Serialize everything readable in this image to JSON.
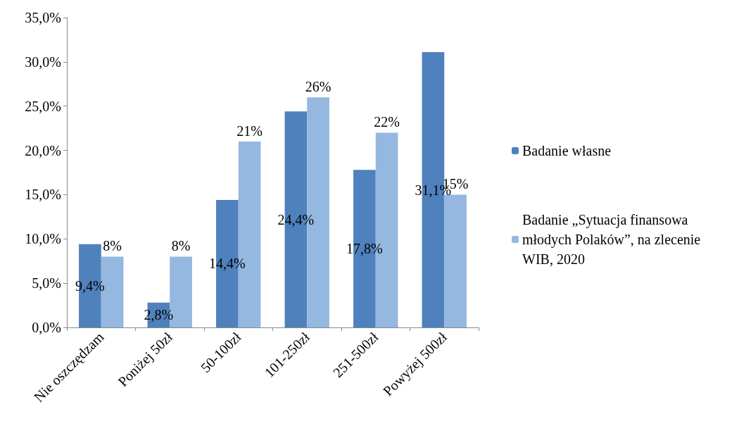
{
  "chart_data": {
    "type": "bar",
    "categories": [
      "Nie oszczędzam",
      "Poniżej 50zł",
      "50-100zł",
      "101-250zł",
      "251-500zł",
      "Powyżej 500zł"
    ],
    "series": [
      {
        "name": "Badanie własne",
        "color": "#4f81bd",
        "values": [
          9.4,
          2.8,
          14.4,
          24.4,
          17.8,
          31.1
        ],
        "value_labels": [
          "9,4%",
          "2,8%",
          "14,4%",
          "24,4%",
          "17,8%",
          "31,1%"
        ]
      },
      {
        "name": "Badanie „Sytuacja finansowa młodych Polaków”, na zlecenie WIB, 2020",
        "color": "#95b8e0",
        "values": [
          8,
          8,
          21,
          26,
          22,
          15
        ],
        "value_labels": [
          "8%",
          "8%",
          "21%",
          "26%",
          "22%",
          "15%"
        ]
      }
    ],
    "ylim": [
      0,
      35
    ],
    "yticks": [
      {
        "value": 0,
        "label": "0,0%"
      },
      {
        "value": 5,
        "label": "5,0%"
      },
      {
        "value": 10,
        "label": "10,0%"
      },
      {
        "value": 15,
        "label": "15,0%"
      },
      {
        "value": 20,
        "label": "20,0%"
      },
      {
        "value": 25,
        "label": "25,0%"
      },
      {
        "value": 30,
        "label": "30,0%"
      },
      {
        "value": 35,
        "label": "35,0%"
      }
    ],
    "grid": false,
    "legend": "right"
  }
}
